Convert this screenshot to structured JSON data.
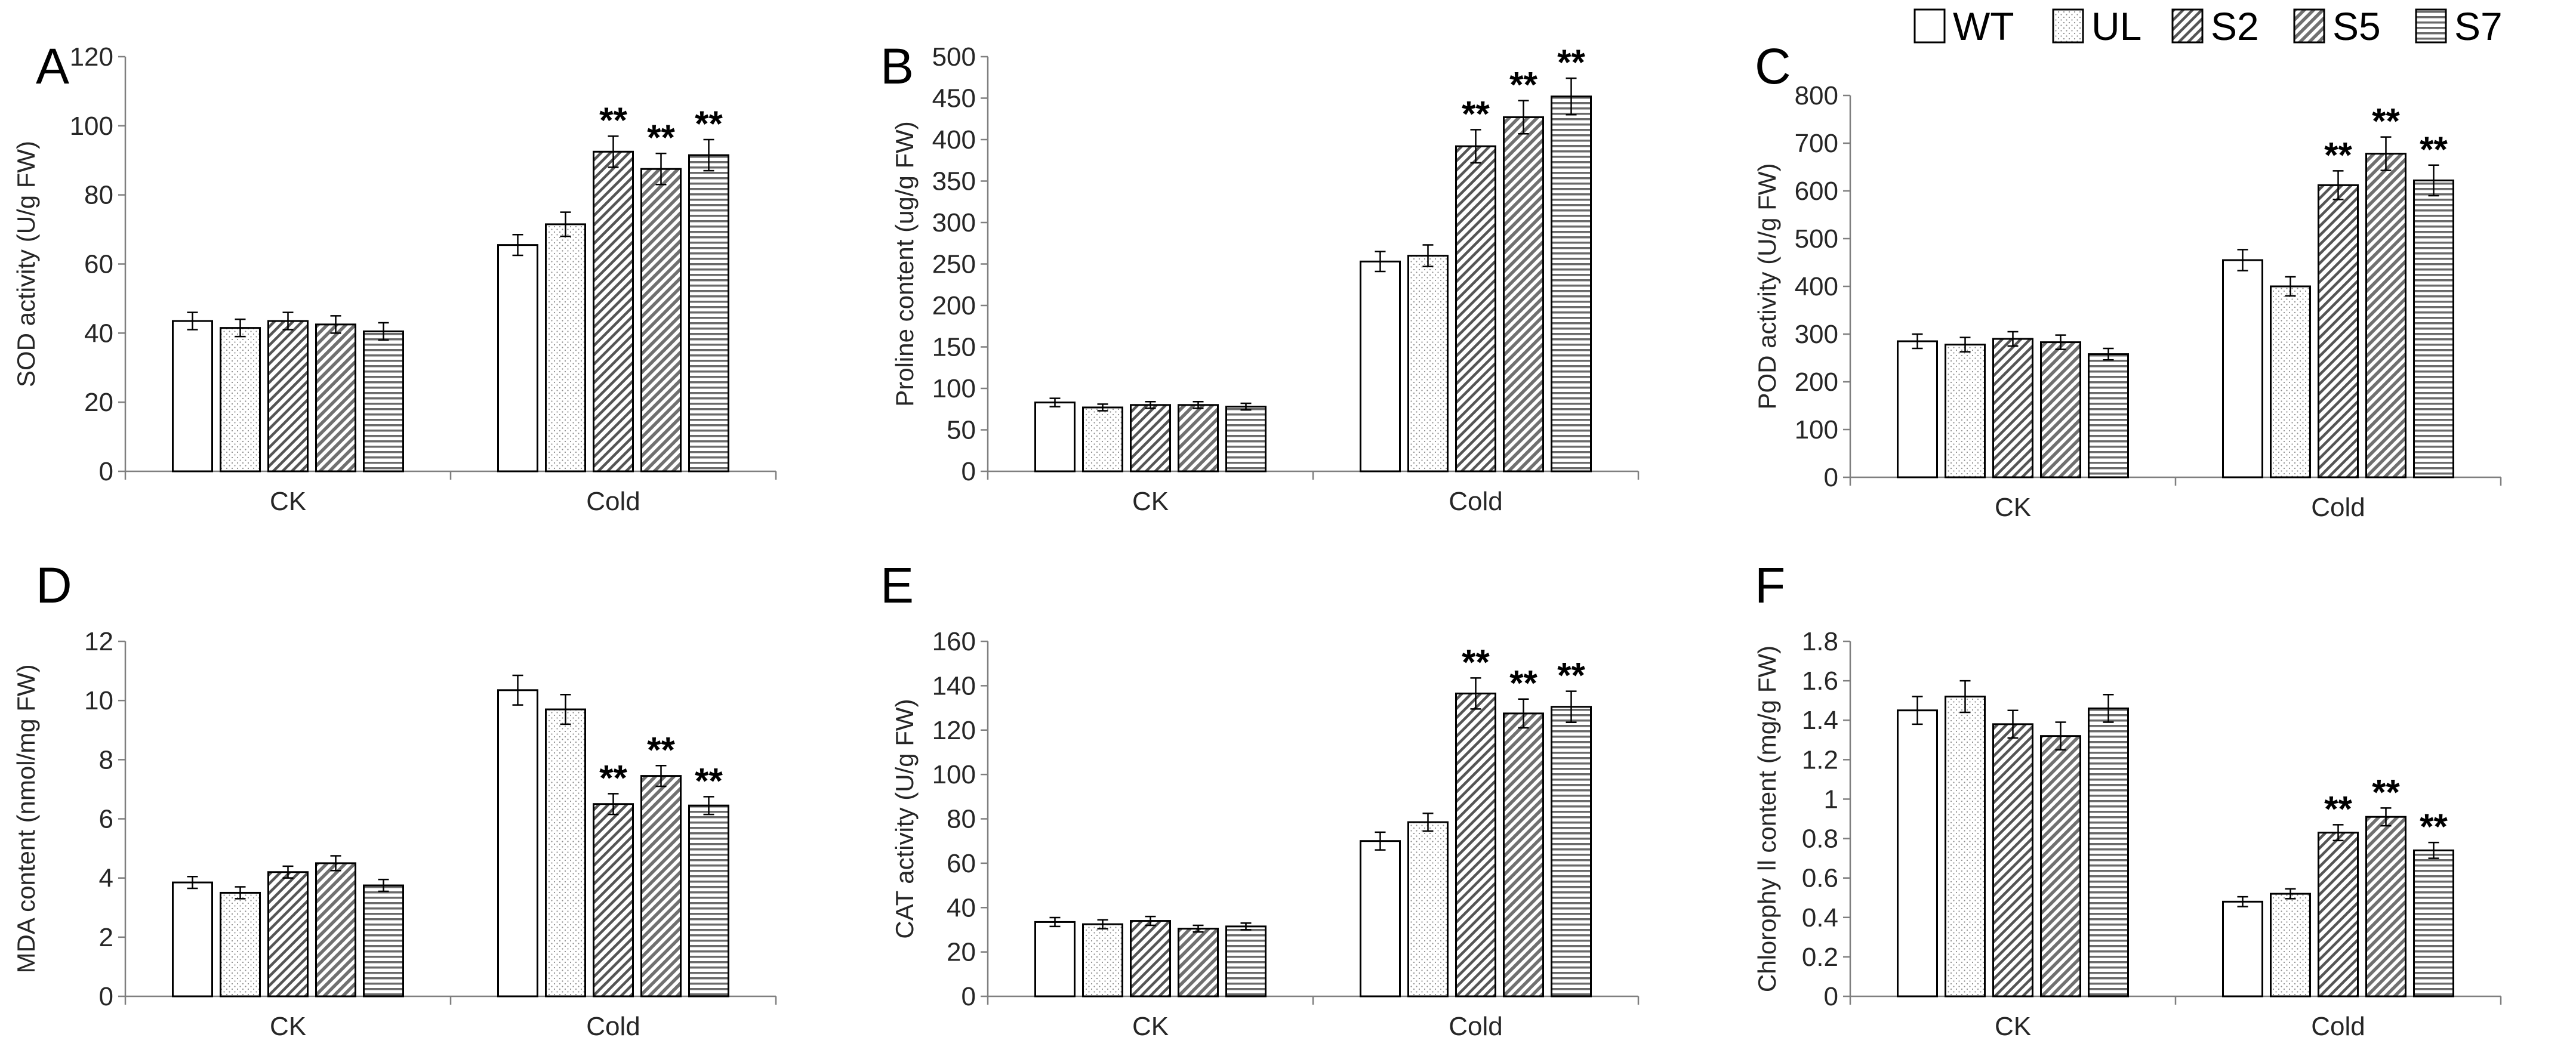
{
  "legend": {
    "items": [
      {
        "name": "WT",
        "pattern": "pat-wt"
      },
      {
        "name": "UL",
        "pattern": "pat-ul"
      },
      {
        "name": "S2",
        "pattern": "pat-s2"
      },
      {
        "name": "S5",
        "pattern": "pat-s5"
      },
      {
        "name": "S7",
        "pattern": "pat-s7"
      }
    ]
  },
  "chart_data": [
    {
      "panel": "A",
      "type": "bar",
      "ylabel": "SOD activity (U/g FW)",
      "ylim": [
        0,
        120
      ],
      "ytick_step": 20,
      "categories": [
        "CK",
        "Cold"
      ],
      "series": [
        {
          "name": "WT",
          "values": [
            43.5,
            65.5
          ],
          "errors": [
            2.5,
            3
          ]
        },
        {
          "name": "UL",
          "values": [
            41.5,
            71.5
          ],
          "errors": [
            2.5,
            3.5
          ]
        },
        {
          "name": "S2",
          "values": [
            43.5,
            92.5
          ],
          "errors": [
            2.5,
            4.5
          ]
        },
        {
          "name": "S5",
          "values": [
            42.5,
            87.5
          ],
          "errors": [
            2.5,
            4.5
          ]
        },
        {
          "name": "S7",
          "values": [
            40.5,
            91.5
          ],
          "errors": [
            2.5,
            4.5
          ]
        }
      ],
      "annotations": [
        {
          "category": "Cold",
          "series": "S2",
          "text": "**"
        },
        {
          "category": "Cold",
          "series": "S5",
          "text": "**"
        },
        {
          "category": "Cold",
          "series": "S7",
          "text": "**"
        }
      ]
    },
    {
      "panel": "B",
      "type": "bar",
      "ylabel": "Proline content (ug/g FW)",
      "ylim": [
        0,
        500
      ],
      "ytick_step": 50,
      "categories": [
        "CK",
        "Cold"
      ],
      "series": [
        {
          "name": "WT",
          "values": [
            83,
            253
          ],
          "errors": [
            5,
            12
          ]
        },
        {
          "name": "UL",
          "values": [
            77,
            260
          ],
          "errors": [
            4,
            13
          ]
        },
        {
          "name": "S2",
          "values": [
            80,
            392
          ],
          "errors": [
            4,
            20
          ]
        },
        {
          "name": "S5",
          "values": [
            80,
            427
          ],
          "errors": [
            4,
            20
          ]
        },
        {
          "name": "S7",
          "values": [
            78,
            452
          ],
          "errors": [
            4,
            22
          ]
        }
      ],
      "annotations": [
        {
          "category": "Cold",
          "series": "S2",
          "text": "**"
        },
        {
          "category": "Cold",
          "series": "S5",
          "text": "**"
        },
        {
          "category": "Cold",
          "series": "S7",
          "text": "**"
        }
      ]
    },
    {
      "panel": "C",
      "type": "bar",
      "ylabel": "POD activity (U/g FW)",
      "ylim": [
        0,
        800
      ],
      "ytick_step": 100,
      "categories": [
        "CK",
        "Cold"
      ],
      "series": [
        {
          "name": "WT",
          "values": [
            285,
            455
          ],
          "errors": [
            15,
            22
          ]
        },
        {
          "name": "UL",
          "values": [
            278,
            400
          ],
          "errors": [
            15,
            20
          ]
        },
        {
          "name": "S2",
          "values": [
            290,
            612
          ],
          "errors": [
            15,
            30
          ]
        },
        {
          "name": "S5",
          "values": [
            283,
            678
          ],
          "errors": [
            15,
            35
          ]
        },
        {
          "name": "S7",
          "values": [
            258,
            622
          ],
          "errors": [
            12,
            32
          ]
        }
      ],
      "annotations": [
        {
          "category": "Cold",
          "series": "S2",
          "text": "**"
        },
        {
          "category": "Cold",
          "series": "S5",
          "text": "**"
        },
        {
          "category": "Cold",
          "series": "S7",
          "text": "**"
        }
      ]
    },
    {
      "panel": "D",
      "type": "bar",
      "ylabel": "MDA content (nmol/mg FW)",
      "ylim": [
        0,
        12
      ],
      "ytick_step": 2,
      "categories": [
        "CK",
        "Cold"
      ],
      "series": [
        {
          "name": "WT",
          "values": [
            3.85,
            10.35
          ],
          "errors": [
            0.2,
            0.5
          ]
        },
        {
          "name": "UL",
          "values": [
            3.5,
            9.7
          ],
          "errors": [
            0.2,
            0.5
          ]
        },
        {
          "name": "S2",
          "values": [
            4.2,
            6.5
          ],
          "errors": [
            0.2,
            0.35
          ]
        },
        {
          "name": "S5",
          "values": [
            4.5,
            7.45
          ],
          "errors": [
            0.25,
            0.35
          ]
        },
        {
          "name": "S7",
          "values": [
            3.75,
            6.45
          ],
          "errors": [
            0.2,
            0.3
          ]
        }
      ],
      "annotations": [
        {
          "category": "Cold",
          "series": "S2",
          "text": "**"
        },
        {
          "category": "Cold",
          "series": "S5",
          "text": "**"
        },
        {
          "category": "Cold",
          "series": "S7",
          "text": "**"
        }
      ]
    },
    {
      "panel": "E",
      "type": "bar",
      "ylabel": "CAT activity (U/g FW)",
      "ylim": [
        0,
        160
      ],
      "ytick_step": 20,
      "categories": [
        "CK",
        "Cold"
      ],
      "series": [
        {
          "name": "WT",
          "values": [
            33.5,
            70
          ],
          "errors": [
            2,
            4
          ]
        },
        {
          "name": "UL",
          "values": [
            32.5,
            78.5
          ],
          "errors": [
            2,
            4
          ]
        },
        {
          "name": "S2",
          "values": [
            34,
            136.5
          ],
          "errors": [
            2,
            7
          ]
        },
        {
          "name": "S5",
          "values": [
            30.5,
            127.5
          ],
          "errors": [
            1.5,
            6.5
          ]
        },
        {
          "name": "S7",
          "values": [
            31.5,
            130.5
          ],
          "errors": [
            1.5,
            7
          ]
        }
      ],
      "annotations": [
        {
          "category": "Cold",
          "series": "S2",
          "text": "**"
        },
        {
          "category": "Cold",
          "series": "S5",
          "text": "**"
        },
        {
          "category": "Cold",
          "series": "S7",
          "text": "**"
        }
      ]
    },
    {
      "panel": "F",
      "type": "bar",
      "ylabel": "Chlorophy ll content (mg/g FW)",
      "ylim": [
        0,
        1.8
      ],
      "ytick_step": 0.2,
      "categories": [
        "CK",
        "Cold"
      ],
      "series": [
        {
          "name": "WT",
          "values": [
            1.45,
            0.48
          ],
          "errors": [
            0.07,
            0.025
          ]
        },
        {
          "name": "UL",
          "values": [
            1.52,
            0.52
          ],
          "errors": [
            0.08,
            0.025
          ]
        },
        {
          "name": "S2",
          "values": [
            1.38,
            0.83
          ],
          "errors": [
            0.07,
            0.04
          ]
        },
        {
          "name": "S5",
          "values": [
            1.32,
            0.91
          ],
          "errors": [
            0.07,
            0.045
          ]
        },
        {
          "name": "S7",
          "values": [
            1.46,
            0.74
          ],
          "errors": [
            0.07,
            0.04
          ]
        }
      ],
      "annotations": [
        {
          "category": "Cold",
          "series": "S2",
          "text": "**"
        },
        {
          "category": "Cold",
          "series": "S5",
          "text": "**"
        },
        {
          "category": "Cold",
          "series": "S7",
          "text": "**"
        }
      ]
    }
  ]
}
